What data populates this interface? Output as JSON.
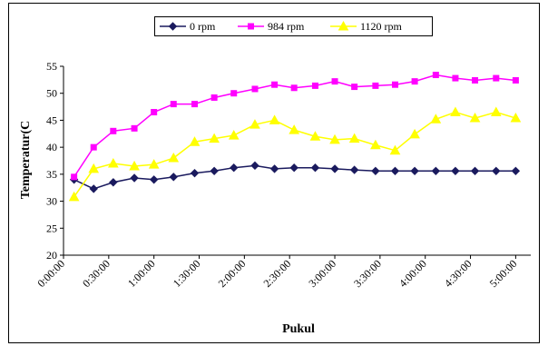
{
  "chart_data": {
    "type": "line",
    "title": "",
    "xlabel": "Pukul",
    "ylabel": "Temperatur(C",
    "ylim": [
      20,
      55
    ],
    "yticks": [
      20,
      25,
      30,
      35,
      40,
      45,
      50,
      55
    ],
    "xlim": [
      0,
      310
    ],
    "x_unit": "minutes",
    "xticks": [
      {
        "value": 0,
        "label": "0:00:00"
      },
      {
        "value": 30,
        "label": "0:30:00"
      },
      {
        "value": 60,
        "label": "1:00:00"
      },
      {
        "value": 90,
        "label": "1:30:00"
      },
      {
        "value": 120,
        "label": "2:00:00"
      },
      {
        "value": 150,
        "label": "2:30:00"
      },
      {
        "value": 180,
        "label": "3:00:00"
      },
      {
        "value": 210,
        "label": "3:30:00"
      },
      {
        "value": 240,
        "label": "4:00:00"
      },
      {
        "value": 270,
        "label": "4:30:00"
      },
      {
        "value": 300,
        "label": "5:00:00"
      }
    ],
    "grid": false,
    "legend_position": "top-center",
    "x": [
      7,
      20,
      33,
      47,
      60,
      73,
      87,
      100,
      113,
      127,
      140,
      153,
      167,
      180,
      193,
      207,
      220,
      233,
      247,
      260,
      273,
      287,
      300
    ],
    "series": [
      {
        "name": "0 rpm",
        "color": "#1a1a5e",
        "marker": "diamond",
        "values": [
          34,
          32.3,
          33.5,
          34.3,
          34,
          34.5,
          35.2,
          35.6,
          36.2,
          36.6,
          36,
          36.2,
          36.2,
          36,
          35.8,
          35.6,
          35.6,
          35.6,
          35.6,
          35.6,
          35.6,
          35.6,
          35.6
        ]
      },
      {
        "name": "984 rpm",
        "color": "#ff00ff",
        "marker": "square",
        "values": [
          34.5,
          40,
          43,
          43.5,
          46.5,
          48,
          48,
          49.2,
          50,
          50.8,
          51.6,
          51,
          51.4,
          52.2,
          51.2,
          51.4,
          51.6,
          52.2,
          53.4,
          52.8,
          52.4,
          52.8,
          52.4
        ]
      },
      {
        "name": "1120 rpm",
        "color": "#ffff00",
        "marker": "triangle",
        "values": [
          30.8,
          36,
          37,
          36.5,
          36.8,
          38,
          41,
          41.6,
          42.2,
          44.2,
          45,
          43.2,
          42,
          41.4,
          41.6,
          40.4,
          39.4,
          42.4,
          45.2,
          46.5,
          45.4,
          46.5,
          45.4
        ]
      }
    ]
  }
}
